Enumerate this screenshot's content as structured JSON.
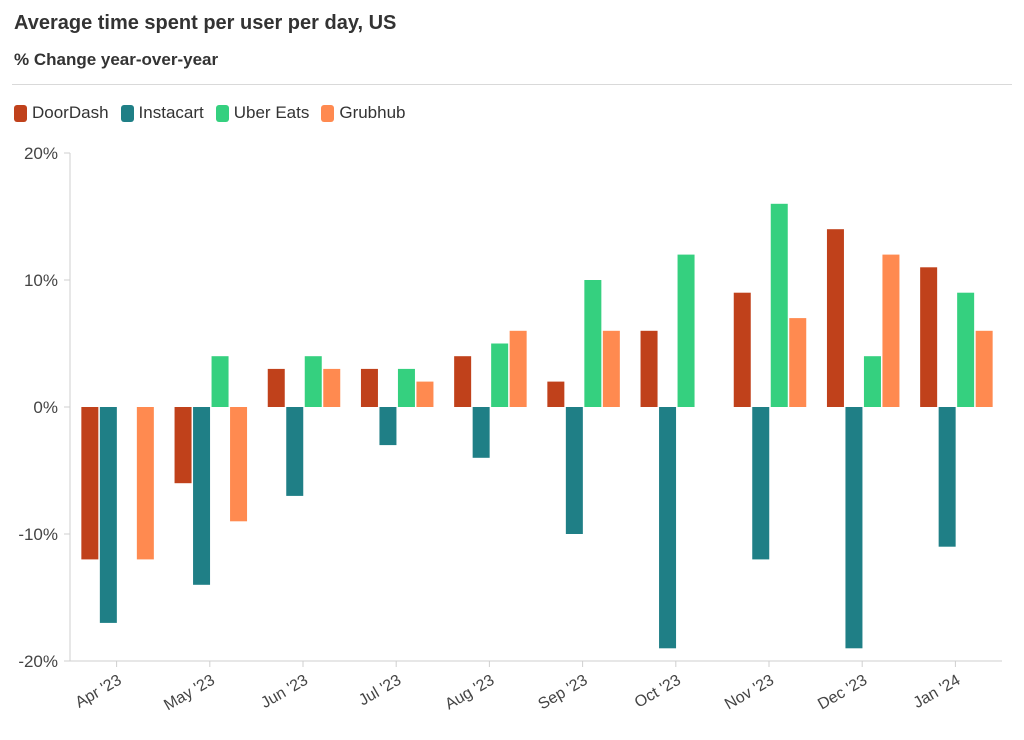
{
  "chart_data": {
    "type": "bar",
    "title": "Average time spent per user per day, US",
    "subtitle": "% Change year-over-year",
    "xlabel": "",
    "ylabel": "",
    "ylim": [
      -20,
      20
    ],
    "y_ticks": [
      20,
      10,
      0,
      -10,
      -20
    ],
    "y_tick_labels": [
      "20%",
      "10%",
      "0%",
      "-10%",
      "-20%"
    ],
    "grid": false,
    "legend_position": "top-left",
    "categories": [
      "Apr '23",
      "May '23",
      "Jun '23",
      "Jul '23",
      "Aug '23",
      "Sep '23",
      "Oct '23",
      "Nov '23",
      "Dec '23",
      "Jan '24"
    ],
    "series": [
      {
        "name": "DoorDash",
        "color": "#c0411b",
        "values": [
          -12,
          -6,
          3,
          3,
          4,
          2,
          6,
          9,
          14,
          11
        ]
      },
      {
        "name": "Instacart",
        "color": "#1f7f86",
        "values": [
          -17,
          -14,
          -7,
          -3,
          -4,
          -10,
          -19,
          -12,
          -19,
          -11
        ]
      },
      {
        "name": "Uber Eats",
        "color": "#35d07f",
        "values": [
          0,
          4,
          4,
          3,
          5,
          10,
          12,
          16,
          4,
          9
        ]
      },
      {
        "name": "Grubhub",
        "color": "#ff8a50",
        "values": [
          -12,
          -9,
          3,
          2,
          6,
          6,
          0,
          7,
          12,
          6
        ]
      }
    ]
  }
}
